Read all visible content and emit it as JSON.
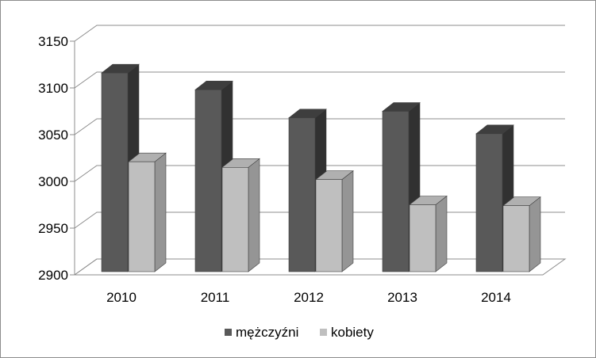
{
  "chart_data": {
    "type": "bar",
    "style": "3d-clustered-column",
    "categories": [
      "2010",
      "2011",
      "2012",
      "2013",
      "2014"
    ],
    "series": [
      {
        "name": "mężczyźni",
        "values": [
          3116,
          3098,
          3068,
          3075,
          3051
        ],
        "color": "#595959"
      },
      {
        "name": "kobiety",
        "values": [
          3021,
          3015,
          3002,
          2975,
          2974
        ],
        "color": "#bfbfbf"
      }
    ],
    "title": "",
    "xlabel": "",
    "ylabel": "",
    "ylim": [
      2900,
      3150
    ],
    "yticks": [
      "2900",
      "2950",
      "3000",
      "3050",
      "3100",
      "3150"
    ],
    "grid": true,
    "legend_position": "bottom"
  }
}
